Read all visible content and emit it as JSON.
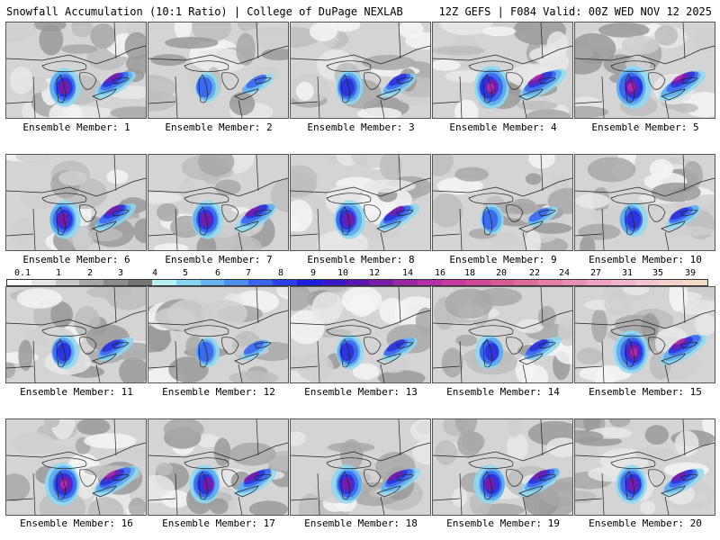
{
  "header": {
    "title": "Snowfall Accumulation (10:1 Ratio) | College of DuPage NEXLAB",
    "run_info": "12Z GEFS | F084 Valid: 00Z WED NOV 12 2025"
  },
  "colorbar": {
    "labels": [
      "0.1",
      "1",
      "2",
      "3",
      "4",
      "5",
      "6",
      "7",
      "8",
      "9",
      "10",
      "12",
      "14",
      "16",
      "18",
      "20",
      "22",
      "24",
      "27",
      "31",
      "35",
      "39"
    ],
    "colors": [
      "#ffffff",
      "#e6e6e6",
      "#c8c8c8",
      "#a8a8a8",
      "#8c8c8c",
      "#747474",
      "#b4f0f0",
      "#86d4f2",
      "#64b4f0",
      "#4a8ef0",
      "#3a64ee",
      "#2a40e8",
      "#1a1ee0",
      "#3818c8",
      "#5a16b4",
      "#7a1aa8",
      "#9a26a4",
      "#b42ea8",
      "#c838a0",
      "#d04896",
      "#d85a92",
      "#de6c98",
      "#e47ea4",
      "#e890b4",
      "#eca2c4",
      "#f0b4ce",
      "#f2c4d0",
      "#f4d2cc",
      "#f4dcc4"
    ]
  },
  "panels": [
    {
      "caption": "Ensemble Member: 1",
      "intensity": 3
    },
    {
      "caption": "Ensemble Member: 2",
      "intensity": 1
    },
    {
      "caption": "Ensemble Member: 3",
      "intensity": 2
    },
    {
      "caption": "Ensemble Member: 4",
      "intensity": 4
    },
    {
      "caption": "Ensemble Member: 5",
      "intensity": 4
    },
    {
      "caption": "Ensemble Member: 6",
      "intensity": 3
    },
    {
      "caption": "Ensemble Member: 7",
      "intensity": 3
    },
    {
      "caption": "Ensemble Member: 8",
      "intensity": 3
    },
    {
      "caption": "Ensemble Member: 9",
      "intensity": 1
    },
    {
      "caption": "Ensemble Member: 10",
      "intensity": 2
    },
    {
      "caption": "Ensemble Member: 11",
      "intensity": 2
    },
    {
      "caption": "Ensemble Member: 12",
      "intensity": 1
    },
    {
      "caption": "Ensemble Member: 13",
      "intensity": 2
    },
    {
      "caption": "Ensemble Member: 14",
      "intensity": 2
    },
    {
      "caption": "Ensemble Member: 15",
      "intensity": 4
    },
    {
      "caption": "Ensemble Member: 16",
      "intensity": 4
    },
    {
      "caption": "Ensemble Member: 17",
      "intensity": 3
    },
    {
      "caption": "Ensemble Member: 18",
      "intensity": 3
    },
    {
      "caption": "Ensemble Member: 19",
      "intensity": 3
    },
    {
      "caption": "Ensemble Member: 20",
      "intensity": 3
    }
  ]
}
